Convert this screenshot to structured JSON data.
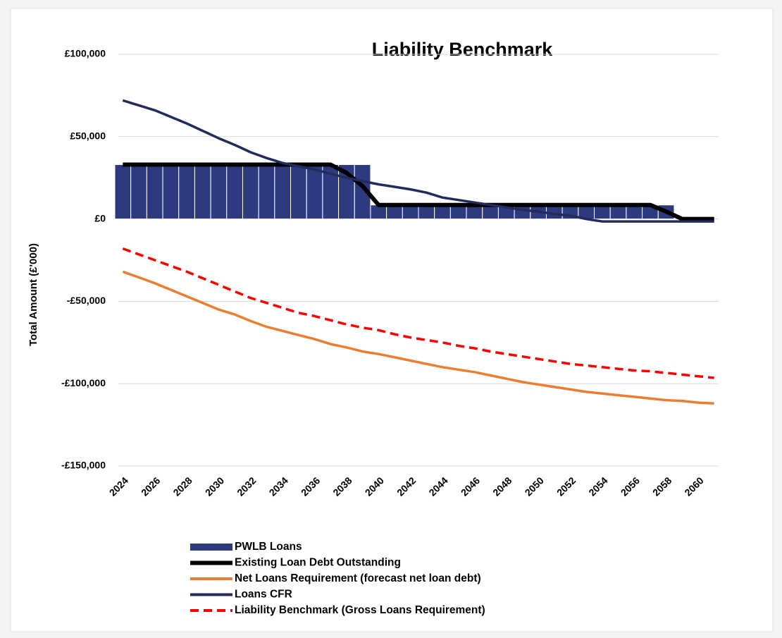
{
  "chart_data": {
    "type": "combo",
    "title": "Liability Benchmark",
    "y_label": "Total Amount (£'000)",
    "categories": [
      "2024",
      null,
      "2026",
      null,
      "2028",
      null,
      "2030",
      null,
      "2032",
      null,
      "2034",
      null,
      "2036",
      null,
      "2038",
      null,
      "2040",
      null,
      "2042",
      null,
      "2044",
      null,
      "2046",
      null,
      "2048",
      null,
      "2050",
      null,
      "2052",
      null,
      "2054",
      null,
      "2056",
      null,
      "2058",
      null,
      "2060",
      null
    ],
    "ylim": [
      -150000,
      100000
    ],
    "yticks": [
      {
        "value": -150000,
        "label": "-£150,000"
      },
      {
        "value": -100000,
        "label": "-£100,000"
      },
      {
        "value": -50000,
        "label": "-£50,000"
      },
      {
        "value": 0,
        "label": "£0"
      },
      {
        "value": 50000,
        "label": "£50,000"
      },
      {
        "value": 100000,
        "label": "£100,000"
      }
    ],
    "grid": true,
    "series": [
      {
        "name": "PWLB Loans",
        "type": "bar",
        "color": "#2e3a80",
        "values": [
          33000,
          33000,
          33000,
          33000,
          33000,
          33000,
          33000,
          33000,
          33000,
          33000,
          33000,
          33000,
          33000,
          33000,
          33000,
          33000,
          8500,
          8500,
          8500,
          8500,
          8500,
          8500,
          8500,
          8500,
          8500,
          8500,
          8500,
          8500,
          8500,
          8500,
          8500,
          8500,
          8500,
          8500,
          8500,
          0,
          0,
          0
        ]
      },
      {
        "name": "Existing Loan Debt Outstanding",
        "type": "line",
        "color": "#000000",
        "values": [
          33000,
          33000,
          33000,
          33000,
          33000,
          33000,
          33000,
          33000,
          33000,
          33000,
          33000,
          33000,
          33000,
          33000,
          28000,
          20000,
          8500,
          8500,
          8500,
          8500,
          8500,
          8500,
          8500,
          8500,
          8500,
          8500,
          8500,
          8500,
          8500,
          8500,
          8500,
          8500,
          8500,
          8500,
          4500,
          0,
          0,
          0
        ]
      },
      {
        "name": "Net Loans Requirement (forecast net loan debt)",
        "type": "line",
        "color": "#ed7d31",
        "values": [
          -32000,
          -35500,
          -39000,
          -43000,
          -47000,
          -51000,
          -55000,
          -58000,
          -62000,
          -65500,
          -68000,
          -70500,
          -73000,
          -76000,
          -78000,
          -80500,
          -82000,
          -84000,
          -86000,
          -88000,
          -90000,
          -91500,
          -93000,
          -95000,
          -97000,
          -99000,
          -100500,
          -102000,
          -103500,
          -105000,
          -106000,
          -107000,
          -108000,
          -109000,
          -110000,
          -110500,
          -111500,
          -112000
        ]
      },
      {
        "name": "Loans CFR",
        "type": "line",
        "color": "#232a5c",
        "values": [
          72000,
          69000,
          66000,
          62000,
          58000,
          53500,
          49000,
          45000,
          40500,
          37000,
          34000,
          32000,
          30000,
          27500,
          25000,
          23000,
          21000,
          19500,
          18000,
          16000,
          13000,
          11500,
          10000,
          8500,
          7000,
          5500,
          4500,
          3000,
          2000,
          0,
          -1500,
          -1500,
          -1500,
          -1500,
          -1500,
          -1500,
          -1500,
          -1500
        ]
      },
      {
        "name": "Liability Benchmark (Gross Loans Requirement)",
        "type": "line",
        "dashed": true,
        "color": "#ff0000",
        "values": [
          -18000,
          -21500,
          -25000,
          -28500,
          -32000,
          -36000,
          -40000,
          -44000,
          -48000,
          -51000,
          -54000,
          -57000,
          -59000,
          -61500,
          -64000,
          -66000,
          -67500,
          -70000,
          -72000,
          -73500,
          -75000,
          -77000,
          -78500,
          -80500,
          -82000,
          -83500,
          -85000,
          -86500,
          -88000,
          -89000,
          -90000,
          -91000,
          -92000,
          -92500,
          -93500,
          -94500,
          -95500,
          -96500
        ]
      }
    ]
  }
}
